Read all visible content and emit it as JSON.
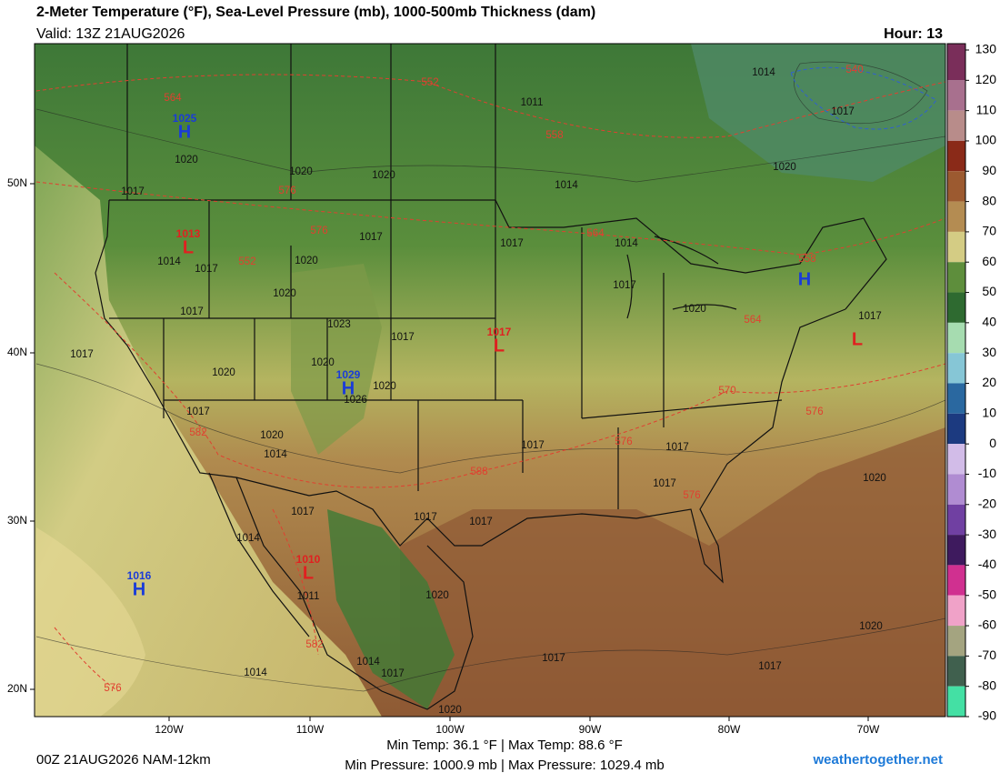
{
  "header": {
    "title": "2-Meter Temperature (°F), Sea-Level Pressure (mb), 1000-500mb Thickness (dam)",
    "valid": "Valid: 13Z 21AUG2026",
    "hour": "Hour: 13"
  },
  "map": {
    "lat_labels": [
      "50N",
      "40N",
      "30N",
      "20N"
    ],
    "lon_labels": [
      "120W",
      "110W",
      "100W",
      "90W",
      "80W",
      "70W"
    ],
    "pressure_labels": [
      "1014",
      "1011",
      "1017",
      "1020",
      "1020",
      "1020",
      "1020",
      "1014",
      "1017",
      "1017",
      "1017",
      "1014",
      "1014",
      "1017",
      "1020",
      "1020",
      "1017",
      "1020",
      "1017",
      "1023",
      "1017",
      "1017",
      "1020",
      "1020",
      "1020",
      "1026",
      "1017",
      "1020",
      "1014",
      "1017",
      "1017",
      "1017",
      "1020",
      "1017",
      "1017",
      "1017",
      "1014",
      "1020",
      "1011",
      "1020",
      "1014",
      "1017",
      "1017",
      "1017",
      "1014",
      "1020",
      "1017"
    ],
    "thickness_labels": [
      "564",
      "552",
      "558",
      "540",
      "576",
      "576",
      "564",
      "552",
      "558",
      "564",
      "570",
      "576",
      "582",
      "576",
      "588",
      "576",
      "582",
      "576"
    ],
    "highs": [
      {
        "value": "1025",
        "symbol": "H"
      },
      {
        "value": "1029",
        "symbol": "H"
      },
      {
        "value": "1016",
        "symbol": "H"
      },
      {
        "symbol": "H"
      }
    ],
    "lows": [
      {
        "value": "1013",
        "symbol": "L"
      },
      {
        "value": "1017",
        "symbol": "L"
      },
      {
        "value": "1010",
        "symbol": "L"
      },
      {
        "symbol": "L"
      }
    ]
  },
  "colorbar": {
    "ticks": [
      130,
      120,
      110,
      100,
      90,
      80,
      70,
      60,
      50,
      40,
      30,
      20,
      10,
      0,
      -10,
      -20,
      -30,
      -40,
      -50,
      -60,
      -70,
      -80,
      -90
    ],
    "colors": [
      "#7a2e5a",
      "#a8708e",
      "#b88c8a",
      "#8a2a18",
      "#9c5a30",
      "#b48c52",
      "#d4cc84",
      "#5e8e3c",
      "#2e6a30",
      "#a6dcb0",
      "#86c6d6",
      "#2a68a0",
      "#1c3a80",
      "#d2bce8",
      "#b08cd2",
      "#7040a2",
      "#3e1a5e",
      "#d03090",
      "#f0a2c8",
      "#a4a480",
      "#40604e",
      "#44e0a4"
    ]
  },
  "footer": {
    "run": "00Z 21AUG2026 NAM-12km",
    "temp_range": "Min Temp:  36.1 °F | Max Temp:  88.6 °F",
    "pressure_range": "Min Pressure: 1000.9 mb | Max Pressure: 1029.4 mb",
    "site": "weathertogether.net"
  }
}
